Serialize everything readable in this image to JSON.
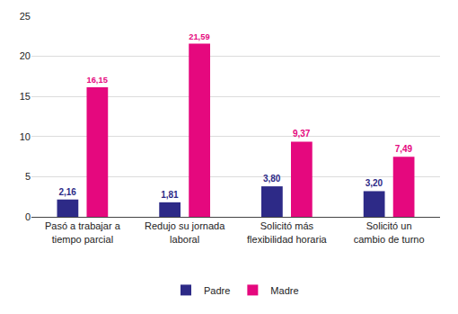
{
  "chart_data": {
    "type": "bar",
    "categories": [
      "Pasó a trabajar a tiempo parcial",
      "Redujo su jornada laboral",
      "Solicitó más flexibilidad horaria",
      "Solicitó un cambio de turno"
    ],
    "series": [
      {
        "name": "Padre",
        "color": "#2d2a87",
        "values": [
          2.16,
          1.81,
          3.8,
          3.2
        ],
        "value_labels": [
          "2,16",
          "1,81",
          "3,80",
          "3,20"
        ]
      },
      {
        "name": "Madre",
        "color": "#e5087e",
        "values": [
          16.15,
          21.59,
          9.37,
          7.49
        ],
        "value_labels": [
          "16,15",
          "21,59",
          "9,37",
          "7,49"
        ]
      }
    ],
    "ylim": [
      0,
      25
    ],
    "yticks": [
      0,
      5,
      10,
      15,
      20,
      25
    ],
    "grid": true,
    "legend": "bottom",
    "data_labels": true
  }
}
